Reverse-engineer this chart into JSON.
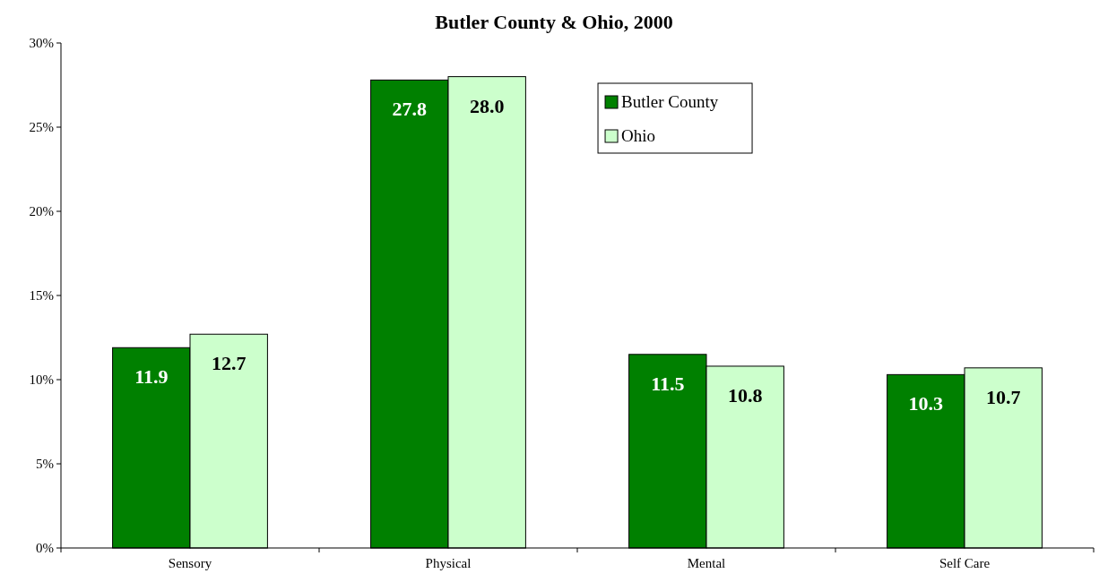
{
  "chart_data": {
    "type": "bar",
    "title": "Butler County & Ohio, 2000",
    "categories": [
      "Sensory",
      "Physical",
      "Mental",
      "Self Care"
    ],
    "series": [
      {
        "name": "Butler County",
        "color": "#008000",
        "values": [
          11.9,
          27.8,
          11.5,
          10.3
        ],
        "value_labels": [
          "11.9",
          "27.8",
          "11.5",
          "10.3"
        ]
      },
      {
        "name": "Ohio",
        "color": "#ccffcc",
        "values": [
          12.7,
          28.0,
          10.8,
          10.7
        ],
        "value_labels": [
          "12.7",
          "28.0",
          "10.8",
          "10.7"
        ]
      }
    ],
    "ylim": [
      0,
      30
    ],
    "yticks": [
      {
        "value": 0,
        "label": "0%"
      },
      {
        "value": 5,
        "label": "5%"
      },
      {
        "value": 10,
        "label": "10%"
      },
      {
        "value": 15,
        "label": "15%"
      },
      {
        "value": 20,
        "label": "20%"
      },
      {
        "value": 25,
        "label": "25%"
      },
      {
        "value": 30,
        "label": "30%"
      }
    ],
    "legend": "top right",
    "grid": false
  }
}
